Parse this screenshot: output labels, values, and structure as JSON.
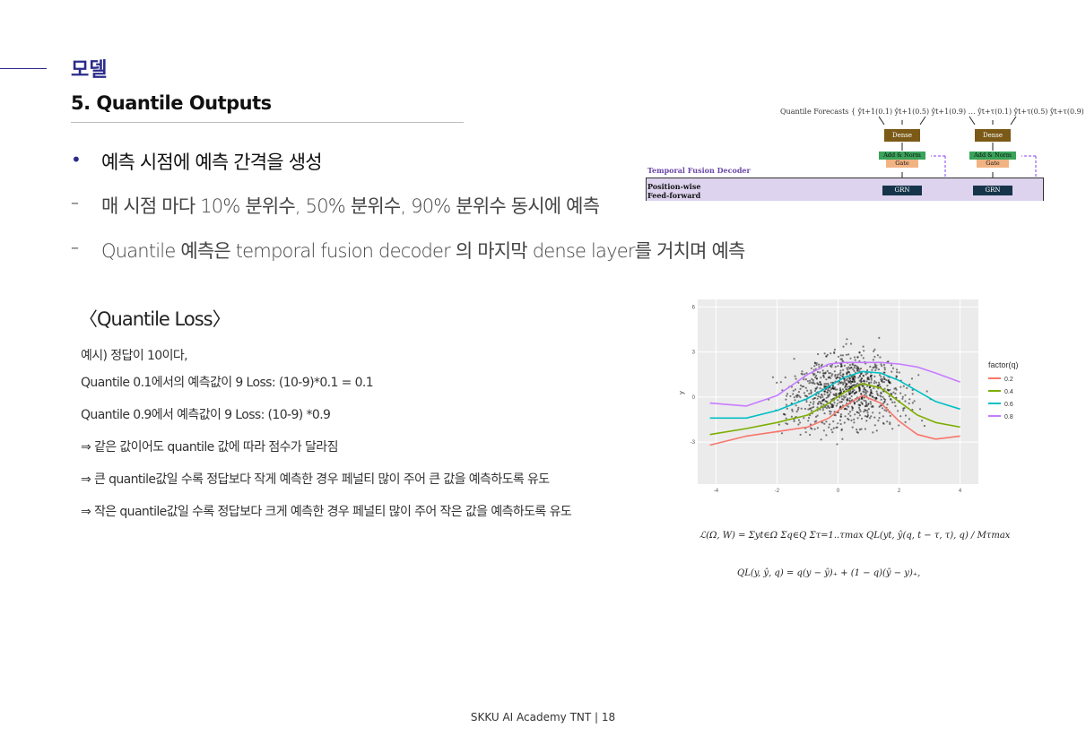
{
  "header": {
    "section": "모델",
    "title": "5. Quantile Outputs"
  },
  "bullets": {
    "main": "예측 시점에 예측 간격을 생성",
    "dash": "–",
    "sub1": "매 시점 마다 10% 분위수, 50% 분위수, 90% 분위수 동시에 예측",
    "sub2": "Quantile 예측은 temporal fusion decoder 의 마지막 dense layer를 거치며 예측"
  },
  "loss": {
    "title": "〈Quantile Loss〉",
    "lines": [
      "예시) 정답이 10이다,",
      "Quantile 0.1에서의 예측값이 9 Loss: (10-9)*0.1 = 0.1",
      "Quantile 0.9에서 예측값이 9 Loss: (10-9) *0.9",
      "⇒ 같은 값이어도 quantile 값에 따라 점수가 달라짐",
      "⇒ 큰 quantile값일 수록 정답보다 작게 예측한 경우 페널티 많이 주어 큰 값을 예측하도록 유도",
      "⇒ 작은 quantile값일 수록 정답보다 크게 예측한 경우 페널티 많이 주어 작은 값을 예측하도록 유도"
    ]
  },
  "decoder": {
    "quantile_forecasts": "Quantile Forecasts { ŷt+1(0.1) ŷt+1(0.5) ŷt+1(0.9) … ŷt+τ(0.1) ŷt+τ(0.5) ŷt+τ(0.9)",
    "dense": "Dense",
    "add_norm": "Add & Norm",
    "gate": "Gate",
    "grn": "GRN",
    "decoder_label": "Temporal Fusion Decoder",
    "position_wise": "Position-wise",
    "feed_forward": "Feed-forward"
  },
  "chart_data": {
    "type": "scatter",
    "xlabel": "",
    "ylabel": "y",
    "xlim": [
      -4.6,
      4.6
    ],
    "ylim": [
      -5.8,
      6.5
    ],
    "x_ticks": [
      -4,
      -2,
      0,
      2,
      4
    ],
    "y_ticks": [
      6,
      3,
      0,
      -3
    ],
    "y_tick_labels": [
      "6",
      "3",
      "0",
      "-3"
    ],
    "grid": true,
    "legend_title": "factor(q)",
    "legend_position": "right",
    "series": [
      {
        "name": "0.2",
        "color": "#f8766d",
        "x": [
          -4.2,
          -3,
          -2,
          -1,
          -0.3,
          0.2,
          0.8,
          1.4,
          2,
          2.6,
          3.2,
          4
        ],
        "y": [
          -3.2,
          -2.6,
          -2.3,
          -2.0,
          -1.4,
          -0.6,
          0.1,
          -0.4,
          -1.6,
          -2.5,
          -2.8,
          -2.6
        ]
      },
      {
        "name": "0.4",
        "color": "#7cae00",
        "x": [
          -4.2,
          -3,
          -2,
          -1,
          -0.3,
          0.2,
          0.8,
          1.4,
          2,
          2.6,
          3.2,
          4
        ],
        "y": [
          -2.5,
          -2.1,
          -1.7,
          -1.2,
          -0.4,
          0.3,
          0.9,
          0.6,
          -0.3,
          -1.2,
          -1.7,
          -2.0
        ]
      },
      {
        "name": "0.6",
        "color": "#00bfc4",
        "x": [
          -4.2,
          -3,
          -2,
          -1,
          -0.3,
          0.2,
          0.8,
          1.4,
          2,
          2.6,
          3.2,
          4
        ],
        "y": [
          -1.4,
          -1.4,
          -0.9,
          -0.1,
          0.7,
          1.3,
          1.7,
          1.6,
          1.1,
          0.4,
          -0.3,
          -0.8
        ]
      },
      {
        "name": "0.8",
        "color": "#c77cff",
        "x": [
          -4.2,
          -3,
          -2,
          -1,
          -0.3,
          0.2,
          0.8,
          1.4,
          2,
          2.6,
          3.2,
          4
        ],
        "y": [
          -0.4,
          -0.6,
          0.1,
          1.5,
          2.2,
          2.3,
          2.3,
          2.3,
          2.2,
          2.0,
          1.6,
          1.0
        ]
      }
    ]
  },
  "formulas": {
    "loss_total": "ℒ(Ω, W) = Σyt∈Ω Σq∈Q Στ=1..τmax QL(yt, ŷ(q, t − τ, τ), q) / Mτmax",
    "ql": "QL(y, ŷ, q) = q(y − ŷ)₊ + (1 − q)(ŷ − y)₊,"
  },
  "footer": "SKKU AI Academy TNT | 18"
}
